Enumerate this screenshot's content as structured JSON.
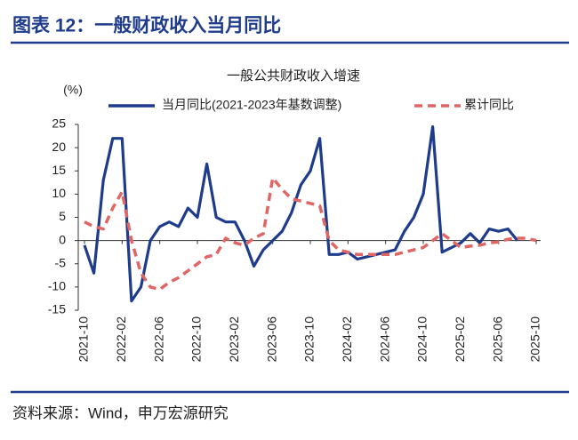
{
  "header": {
    "title": "图表 12：一般财政收入当月同比"
  },
  "source": "资料来源：Wind，申万宏源研究",
  "chart_data": {
    "type": "line",
    "title": "一般公共财政收入增速",
    "y_unit": "(%)",
    "categories": [
      "2021-10",
      null,
      null,
      null,
      "2022-02",
      null,
      null,
      null,
      "2022-06",
      null,
      null,
      null,
      "2022-10",
      null,
      null,
      null,
      "2023-02",
      null,
      null,
      null,
      "2023-06",
      null,
      null,
      null,
      "2023-10",
      null,
      null,
      null,
      "2024-02",
      null,
      null,
      null,
      "2024-06",
      null,
      null,
      null,
      "2024-10",
      null,
      null,
      null,
      "2025-02",
      null,
      null,
      null,
      "2025-06",
      null,
      null,
      null,
      "2025-10"
    ],
    "series": [
      {
        "name": "当月同比(2021-2023年基数调整)",
        "color": "#1f3c8c",
        "dashed": false,
        "values": [
          -1,
          -7,
          13,
          22,
          22,
          -13,
          -10,
          0,
          3,
          4,
          3,
          7,
          5,
          16.5,
          5,
          4,
          4,
          0,
          -5.5,
          -2,
          0,
          2,
          6,
          12,
          15,
          22,
          -3,
          -3,
          -2.5,
          -4,
          -3.5,
          -3,
          -2.5,
          -2,
          2,
          5,
          10,
          24.5,
          -2.5,
          -1.5,
          -0.5,
          1.5,
          -0.5,
          2.5,
          2,
          2.5,
          0,
          null,
          null
        ]
      },
      {
        "name": "累计同比",
        "color": "#e06666",
        "dashed": true,
        "values": [
          4,
          3,
          2.5,
          7,
          10.5,
          0,
          -7,
          -10,
          -10.5,
          -9,
          -8,
          -6.5,
          -5,
          -3.5,
          -3,
          0.5,
          -0.5,
          -1,
          0.5,
          1.5,
          13.5,
          11,
          9,
          8.5,
          8,
          7.5,
          0,
          -2,
          -2.5,
          -3,
          -3,
          -3,
          -3,
          -3,
          -2.5,
          -2,
          -1.5,
          0,
          1.5,
          0,
          -1.5,
          -1.2,
          -1,
          -0.5,
          -0.3,
          0.3,
          0.5,
          0.5,
          0
        ]
      }
    ],
    "ylim": [
      -15,
      25
    ],
    "yticks": [
      -15,
      -10,
      -5,
      0,
      5,
      10,
      15,
      20,
      25
    ],
    "grid": false
  }
}
